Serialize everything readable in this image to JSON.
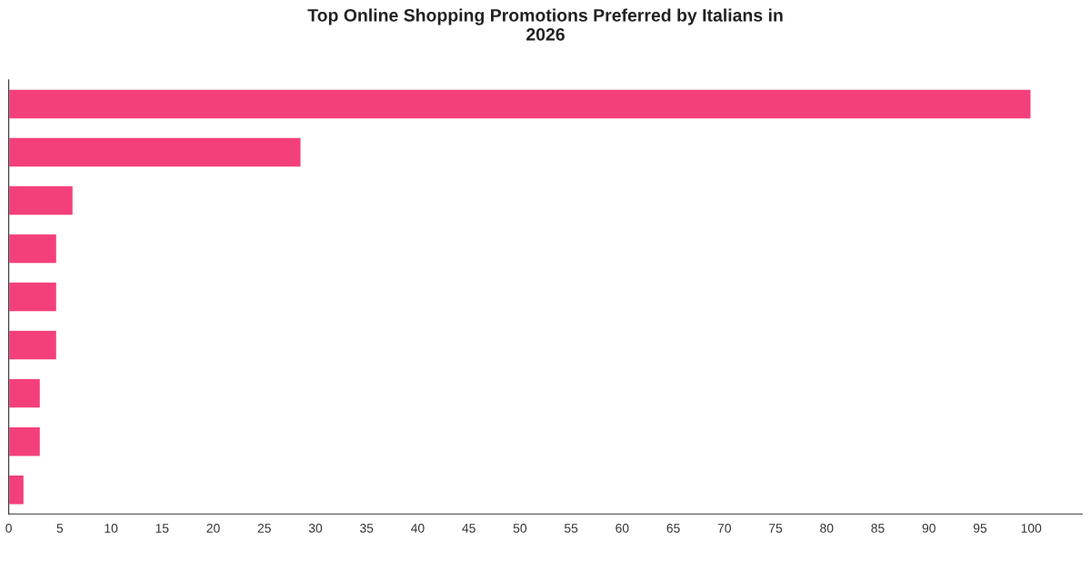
{
  "chart_data": {
    "type": "bar",
    "orientation": "horizontal",
    "title": "Top Online Shopping Promotions Preferred by Italians in\n2026",
    "categories": [
      null,
      null,
      null,
      null,
      null,
      null,
      null,
      null,
      null
    ],
    "series": [
      {
        "color": "#f4407a",
        "values": [
          100,
          28.6,
          6.3,
          4.7,
          4.7,
          4.7,
          3.1,
          3.1,
          1.5
        ]
      }
    ],
    "xlim": [
      0,
      105
    ],
    "xticks": [
      0,
      5,
      10,
      15,
      20,
      25,
      30,
      35,
      40,
      45,
      50,
      55,
      60,
      65,
      70,
      75,
      80,
      85,
      90,
      95,
      100
    ],
    "grid": false,
    "tick_labels": "x"
  }
}
